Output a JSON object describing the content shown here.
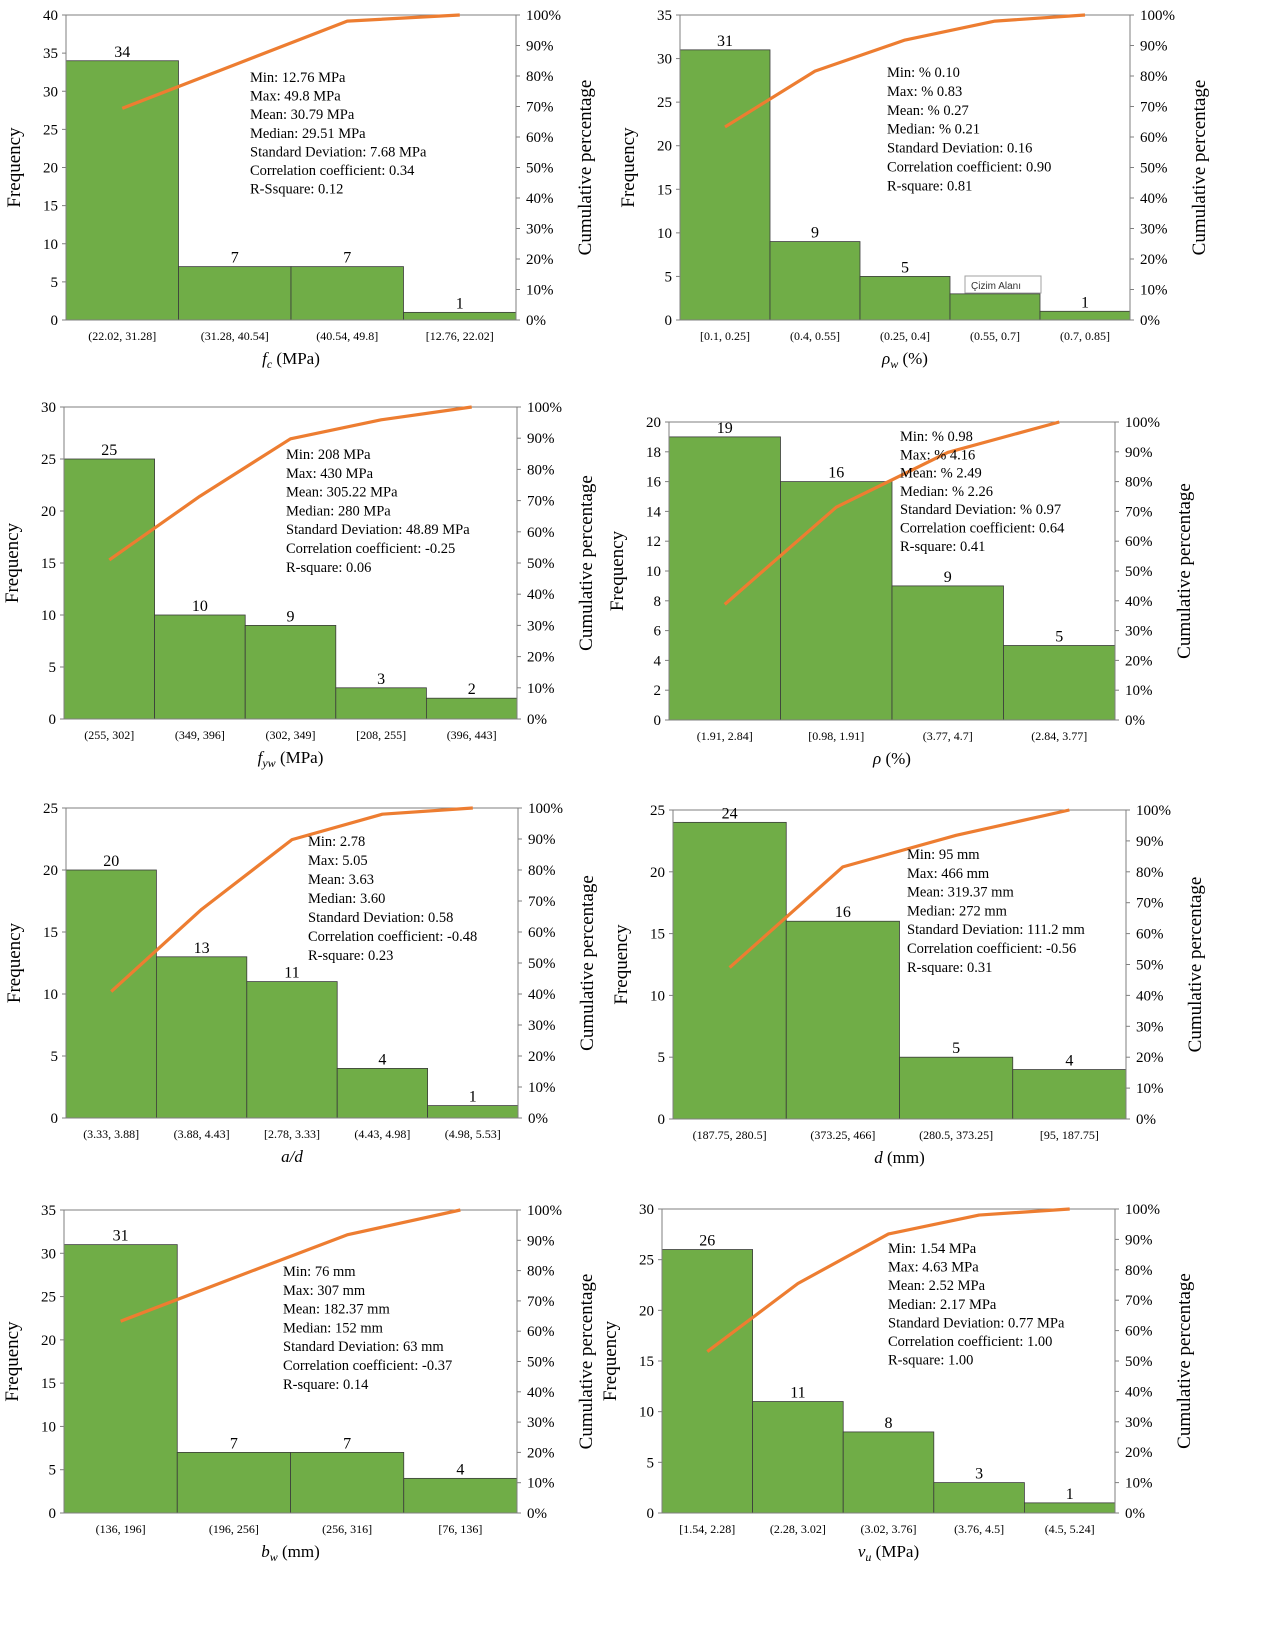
{
  "tooltip": "Çizim Alanı",
  "colors": {
    "bar": "#70ad47",
    "line": "#ed7d31",
    "axis": "#7f7f7f"
  },
  "chart_data": [
    {
      "type": "bar",
      "categories": [
        "(22.02, 31.28]",
        "(31.28, 40.54]",
        "(40.54, 49.8]",
        "[12.76, 22.02]"
      ],
      "values": [
        34,
        7,
        7,
        1
      ],
      "data_labels": [
        "34",
        "7",
        "7",
        "1"
      ],
      "cumulative_percent": [
        69.4,
        83.7,
        98.0,
        100
      ],
      "ylim": [
        0,
        40
      ],
      "yticks": [
        "0",
        "5",
        "10",
        "15",
        "20",
        "25",
        "30",
        "35",
        "40"
      ],
      "y2ticks": [
        "0%",
        "10%",
        "20%",
        "30%",
        "40%",
        "50%",
        "60%",
        "70%",
        "80%",
        "90%",
        "100%"
      ],
      "ylabel": "Frequency",
      "y2label": "Cumulative percentage",
      "xlabel_symbol": "f",
      "xlabel_sub": "c",
      "xlabel_unit": " (MPa)",
      "stats": [
        "Min: 12.76 MPa",
        "Max: 49.8 MPa",
        "Mean: 30.79 MPa",
        "Median: 29.51 MPa",
        "Standard Deviation: 7.68 MPa",
        "Correlation coefficient: 0.34",
        "R-Ssquare: 0.12"
      ]
    },
    {
      "type": "bar",
      "categories": [
        "[0.1, 0.25]",
        "(0.4, 0.55]",
        "(0.25, 0.4]",
        "(0.55, 0.7]",
        "(0.7, 0.85]"
      ],
      "values": [
        31,
        9,
        5,
        3,
        1
      ],
      "data_labels": [
        "31",
        "9",
        "5",
        "",
        "1"
      ],
      "cumulative_percent": [
        63.3,
        81.6,
        91.8,
        98.0,
        100
      ],
      "ylim": [
        0,
        35
      ],
      "yticks": [
        "0",
        "5",
        "10",
        "15",
        "20",
        "25",
        "30",
        "35"
      ],
      "y2ticks": [
        "0%",
        "10%",
        "20%",
        "30%",
        "40%",
        "50%",
        "60%",
        "70%",
        "80%",
        "90%",
        "100%"
      ],
      "ylabel": "Frequency",
      "y2label": "Cumulative percentage",
      "xlabel_symbol": "ρ",
      "xlabel_sub": "w",
      "xlabel_unit": " (%)",
      "stats": [
        "Min: % 0.10",
        "Max: % 0.83",
        "Mean: % 0.27",
        "Median: % 0.21",
        "Standard Deviation: 0.16",
        "Correlation coefficient: 0.90",
        "R-square: 0.81"
      ]
    },
    {
      "type": "bar",
      "categories": [
        "(255, 302]",
        "(349, 396]",
        "(302, 349]",
        "[208, 255]",
        "(396, 443]"
      ],
      "values": [
        25,
        10,
        9,
        3,
        2
      ],
      "data_labels": [
        "25",
        "10",
        "9",
        "3",
        "2"
      ],
      "cumulative_percent": [
        51.0,
        71.4,
        89.8,
        95.9,
        100
      ],
      "ylim": [
        0,
        30
      ],
      "yticks": [
        "0",
        "5",
        "10",
        "15",
        "20",
        "25",
        "30"
      ],
      "y2ticks": [
        "0%",
        "10%",
        "20%",
        "30%",
        "40%",
        "50%",
        "60%",
        "70%",
        "80%",
        "90%",
        "100%"
      ],
      "ylabel": "Frequency",
      "y2label": "Cumulative percentage",
      "xlabel_symbol": "f",
      "xlabel_sub": "yw",
      "xlabel_unit": " (MPa)",
      "stats": [
        "Min: 208 MPa",
        "Max: 430 MPa",
        "Mean: 305.22 MPa",
        "Median: 280 MPa",
        "Standard Deviation: 48.89 MPa",
        "Correlation coefficient: -0.25",
        "R-square: 0.06"
      ]
    },
    {
      "type": "bar",
      "categories": [
        "(1.91, 2.84]",
        "[0.98, 1.91]",
        "(3.77, 4.7]",
        "(2.84, 3.77]"
      ],
      "values": [
        19,
        16,
        9,
        5
      ],
      "data_labels": [
        "19",
        "16",
        "9",
        "5"
      ],
      "cumulative_percent": [
        38.8,
        71.4,
        89.8,
        100
      ],
      "ylim": [
        0,
        20
      ],
      "yticks": [
        "0",
        "2",
        "4",
        "6",
        "8",
        "10",
        "12",
        "14",
        "16",
        "18",
        "20"
      ],
      "y2ticks": [
        "0%",
        "10%",
        "20%",
        "30%",
        "40%",
        "50%",
        "60%",
        "70%",
        "80%",
        "90%",
        "100%"
      ],
      "ylabel": "Frequency",
      "y2label": "Cumulative percentage",
      "xlabel_symbol": "ρ",
      "xlabel_sub": "",
      "xlabel_unit": " (%)",
      "stats": [
        "Min: % 0.98",
        "Max: % 4.16",
        "Mean: % 2.49",
        "Median: % 2.26",
        "Standard Deviation: % 0.97",
        "Correlation coefficient: 0.64",
        "R-square: 0.41"
      ]
    },
    {
      "type": "bar",
      "categories": [
        "(3.33, 3.88]",
        "(3.88, 4.43]",
        "[2.78, 3.33]",
        "(4.43, 4.98]",
        "(4.98, 5.53]"
      ],
      "values": [
        20,
        13,
        11,
        4,
        1
      ],
      "data_labels": [
        "20",
        "13",
        "11",
        "4",
        "1"
      ],
      "cumulative_percent": [
        40.8,
        67.3,
        89.8,
        98.0,
        100
      ],
      "ylim": [
        0,
        25
      ],
      "yticks": [
        "0",
        "5",
        "10",
        "15",
        "20",
        "25"
      ],
      "y2ticks": [
        "0%",
        "10%",
        "20%",
        "30%",
        "40%",
        "50%",
        "60%",
        "70%",
        "80%",
        "90%",
        "100%"
      ],
      "ylabel": "Frequency",
      "y2label": "Cumulative percentage",
      "xlabel_symbol": "a/d",
      "xlabel_sub": "",
      "xlabel_unit": "",
      "stats": [
        "Min: 2.78",
        "Max: 5.05",
        "Mean: 3.63",
        "Median: 3.60",
        "Standard Deviation: 0.58",
        "Correlation coefficient: -0.48",
        "R-square: 0.23"
      ]
    },
    {
      "type": "bar",
      "categories": [
        "(187.75, 280.5]",
        "(373.25, 466]",
        "(280.5, 373.25]",
        "[95, 187.75]"
      ],
      "values": [
        24,
        16,
        5,
        4
      ],
      "data_labels": [
        "24",
        "16",
        "5",
        "4"
      ],
      "cumulative_percent": [
        49.0,
        81.6,
        91.8,
        100
      ],
      "ylim": [
        0,
        25
      ],
      "yticks": [
        "0",
        "5",
        "10",
        "15",
        "20",
        "25"
      ],
      "y2ticks": [
        "0%",
        "10%",
        "20%",
        "30%",
        "40%",
        "50%",
        "60%",
        "70%",
        "80%",
        "90%",
        "100%"
      ],
      "ylabel": "Frequency",
      "y2label": "Cumulative percentage",
      "xlabel_symbol": "d",
      "xlabel_sub": "",
      "xlabel_unit": " (mm)",
      "stats": [
        "Min: 95 mm",
        "Max: 466 mm",
        "Mean: 319.37 mm",
        "Median: 272 mm",
        "Standard Deviation: 111.2 mm",
        "Correlation coefficient: -0.56",
        "R-square: 0.31"
      ]
    },
    {
      "type": "bar",
      "categories": [
        "(136, 196]",
        "(196, 256]",
        "(256, 316]",
        "[76, 136]"
      ],
      "values": [
        31,
        7,
        7,
        4
      ],
      "data_labels": [
        "31",
        "7",
        "7",
        "4"
      ],
      "cumulative_percent": [
        63.3,
        77.6,
        91.8,
        100
      ],
      "ylim": [
        0,
        35
      ],
      "yticks": [
        "0",
        "5",
        "10",
        "15",
        "20",
        "25",
        "30",
        "35"
      ],
      "y2ticks": [
        "0%",
        "10%",
        "20%",
        "30%",
        "40%",
        "50%",
        "60%",
        "70%",
        "80%",
        "90%",
        "100%"
      ],
      "ylabel": "Frequency",
      "y2label": "Cumulative percentage",
      "xlabel_symbol": "b",
      "xlabel_sub": "w",
      "xlabel_unit": " (mm)",
      "stats": [
        "Min: 76 mm",
        "Max: 307 mm",
        "Mean: 182.37 mm",
        "Median: 152 mm",
        "Standard Deviation: 63 mm",
        "Correlation coefficient: -0.37",
        "R-square: 0.14"
      ]
    },
    {
      "type": "bar",
      "categories": [
        "[1.54, 2.28]",
        "(2.28, 3.02]",
        "(3.02, 3.76]",
        "(3.76, 4.5]",
        "(4.5, 5.24]"
      ],
      "values": [
        26,
        11,
        8,
        3,
        1
      ],
      "data_labels": [
        "26",
        "11",
        "8",
        "3",
        "1"
      ],
      "cumulative_percent": [
        53.1,
        75.5,
        91.8,
        98.0,
        100
      ],
      "ylim": [
        0,
        30
      ],
      "yticks": [
        "0",
        "5",
        "10",
        "15",
        "20",
        "25",
        "30"
      ],
      "y2ticks": [
        "0%",
        "10%",
        "20%",
        "30%",
        "40%",
        "50%",
        "60%",
        "70%",
        "80%",
        "90%",
        "100%"
      ],
      "ylabel": "Frequency",
      "y2label": "Cumulative percentage",
      "xlabel_symbol": "v",
      "xlabel_sub": "u",
      "xlabel_unit": " (MPa)",
      "stats": [
        "Min: 1.54 MPa",
        "Max: 4.63 MPa",
        "Mean: 2.52 MPa",
        "Median: 2.17 MPa",
        "Standard Deviation: 0.77 MPa",
        "Correlation coefficient: 1.00",
        "R-square: 1.00"
      ]
    }
  ]
}
